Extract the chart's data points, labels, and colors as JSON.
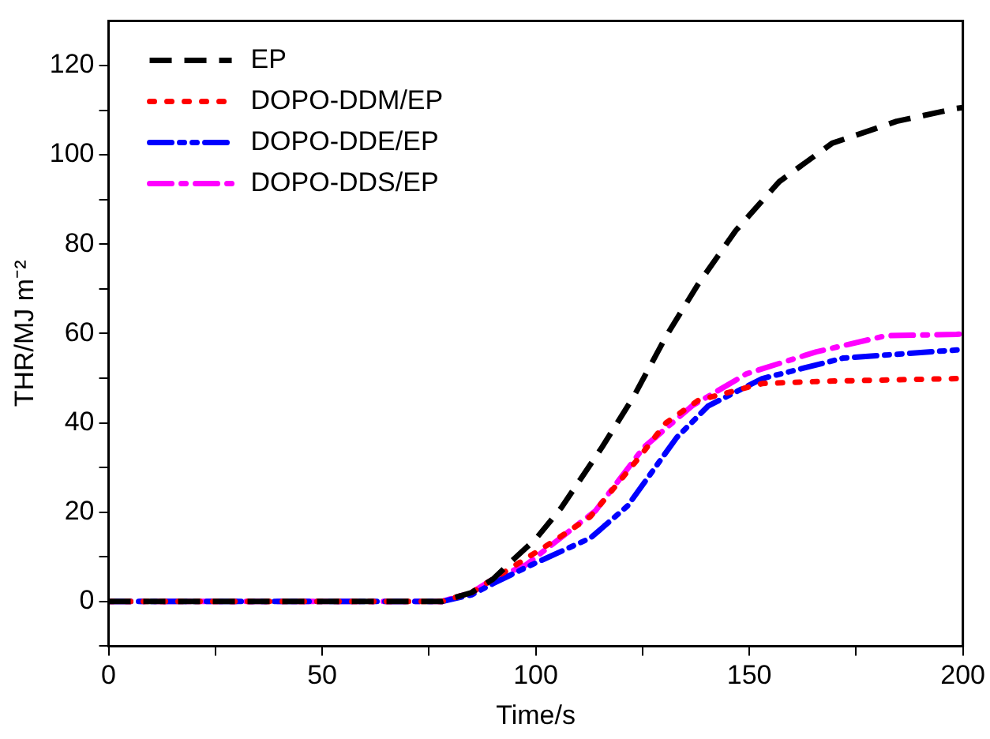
{
  "chart_data": {
    "type": "line",
    "xlabel": "Time/s",
    "ylabel": "THR/MJ m⁻²",
    "xlim": [
      0,
      200
    ],
    "ylim": [
      -10,
      130
    ],
    "xticks": [
      0,
      {
        "value": 25,
        "label": null
      },
      50,
      {
        "value": 75,
        "label": null
      },
      100,
      {
        "value": 125,
        "label": null
      },
      150,
      {
        "value": 175,
        "label": null
      },
      200
    ],
    "yticks": [
      {
        "value": -10,
        "label": null
      },
      0,
      {
        "value": 10,
        "label": null
      },
      20,
      {
        "value": 30,
        "label": null
      },
      40,
      {
        "value": 50,
        "label": null
      },
      60,
      {
        "value": 70,
        "label": null
      },
      80,
      {
        "value": 90,
        "label": null
      },
      100,
      {
        "value": 110,
        "label": null
      },
      120
    ],
    "grid": false,
    "legend": "top left",
    "marker": "none",
    "series": [
      {
        "name": "EP",
        "color": "#000000",
        "line_style": "dashed",
        "x": [
          0,
          78,
          85,
          90,
          95,
          100,
          106,
          115.5,
          123,
          130.6,
          138,
          146.8,
          157,
          169.4,
          184.5,
          198.5,
          200
        ],
        "values": [
          0,
          0,
          2,
          5,
          9.6,
          14,
          21,
          34.5,
          46,
          59.5,
          71,
          83,
          94,
          102.6,
          107.5,
          110.4,
          110.6
        ]
      },
      {
        "name": "DOPO-DDM/EP",
        "color": "#ff0000",
        "line_style": "dotted",
        "x": [
          0,
          78,
          85,
          90,
          97.7,
          105,
          112.8,
          124,
          130.5,
          138,
          153,
          167,
          198.5,
          200
        ],
        "values": [
          0,
          0,
          2,
          5,
          9.6,
          14,
          19,
          32,
          40,
          45,
          48.8,
          49.3,
          49.9,
          49.9
        ]
      },
      {
        "name": "DOPO-DDE/EP",
        "color": "#0000ff",
        "line_style": "dashdotdot",
        "x": [
          0,
          78,
          85,
          90,
          99,
          112.8,
          121.5,
          133,
          140.4,
          153,
          172,
          198.5,
          200
        ],
        "values": [
          0,
          0,
          1.5,
          4,
          8.2,
          14.2,
          21.4,
          36.7,
          43.8,
          49.9,
          54.5,
          56.3,
          56.4
        ]
      },
      {
        "name": "DOPO-DDS/EP",
        "color": "#ff00ff",
        "line_style": "dashdot",
        "x": [
          0,
          78,
          85,
          90,
          97.7,
          114,
          125.3,
          136.6,
          149.4,
          165.7,
          182,
          198.5,
          200
        ],
        "values": [
          0,
          0,
          2,
          5,
          8.2,
          20.3,
          34.5,
          43.8,
          51,
          55.9,
          59.5,
          59.8,
          59.9
        ]
      }
    ]
  }
}
